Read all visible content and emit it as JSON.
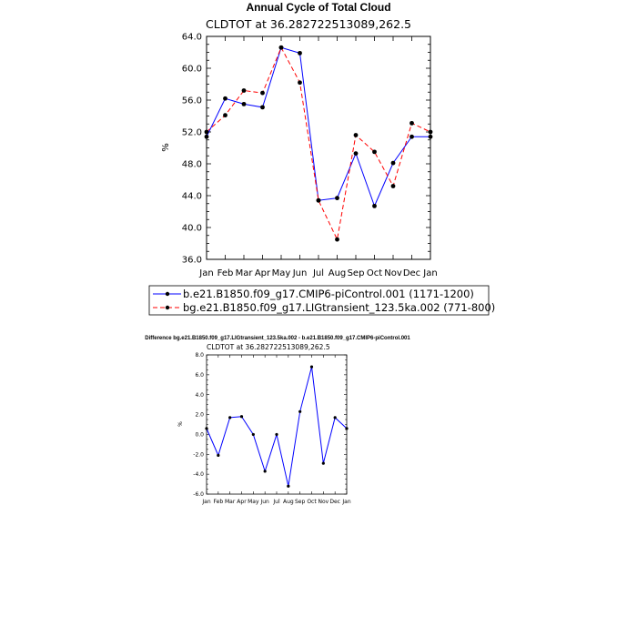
{
  "colors": {
    "series1": "#0000ff",
    "series2": "#ff0000",
    "marker": "#000000",
    "diff": "#0000ff"
  },
  "chart_data": [
    {
      "type": "line",
      "title": "Annual Cycle of Total Cloud",
      "subtitle": "CLDTOT at 36.282722513089,262.5",
      "ylabel": "%",
      "categories": [
        "Jan",
        "Feb",
        "Mar",
        "Apr",
        "May",
        "Jun",
        "Jul",
        "Aug",
        "Sep",
        "Oct",
        "Nov",
        "Dec",
        "Jan"
      ],
      "ylim": [
        36.0,
        64.0
      ],
      "yticks": [
        "36.0",
        "40.0",
        "44.0",
        "48.0",
        "52.0",
        "56.0",
        "60.0",
        "64.0"
      ],
      "series": [
        {
          "name": "b.e21.B1850.f09_g17.CMIP6-piControl.001 (1171-1200)",
          "style": "solid",
          "values": [
            51.4,
            56.2,
            55.5,
            55.1,
            62.6,
            61.9,
            43.4,
            43.7,
            49.3,
            42.7,
            48.1,
            51.4,
            51.4
          ]
        },
        {
          "name": "bg.e21.B1850.f09_g17.LIGtransient_123.5ka.002 (771-800)",
          "style": "dashed",
          "values": [
            52.0,
            54.1,
            57.2,
            56.9,
            62.6,
            58.2,
            43.4,
            38.5,
            51.6,
            49.5,
            45.2,
            53.1,
            52.0
          ]
        }
      ],
      "legend": "bottom"
    },
    {
      "type": "line",
      "title": "Difference bg.e21.B1850.f09_g17.LIGtransient_123.5ka.002 - b.e21.B1850.f09_g17.CMIP6-piControl.001",
      "subtitle": "CLDTOT at 36.282722513089,262.5",
      "ylabel": "%",
      "categories": [
        "Jan",
        "Feb",
        "Mar",
        "Apr",
        "May",
        "Jun",
        "Jul",
        "Aug",
        "Sep",
        "Oct",
        "Nov",
        "Dec",
        "Jan"
      ],
      "ylim": [
        -6.0,
        8.0
      ],
      "yticks": [
        "-6.0",
        "-4.0",
        "-2.0",
        "0.0",
        "2.0",
        "4.0",
        "6.0",
        "8.0"
      ],
      "series": [
        {
          "style": "solid",
          "values": [
            0.6,
            -2.1,
            1.7,
            1.8,
            0.0,
            -3.7,
            0.0,
            -5.2,
            2.3,
            6.8,
            -2.9,
            1.7,
            0.6
          ]
        }
      ]
    }
  ]
}
